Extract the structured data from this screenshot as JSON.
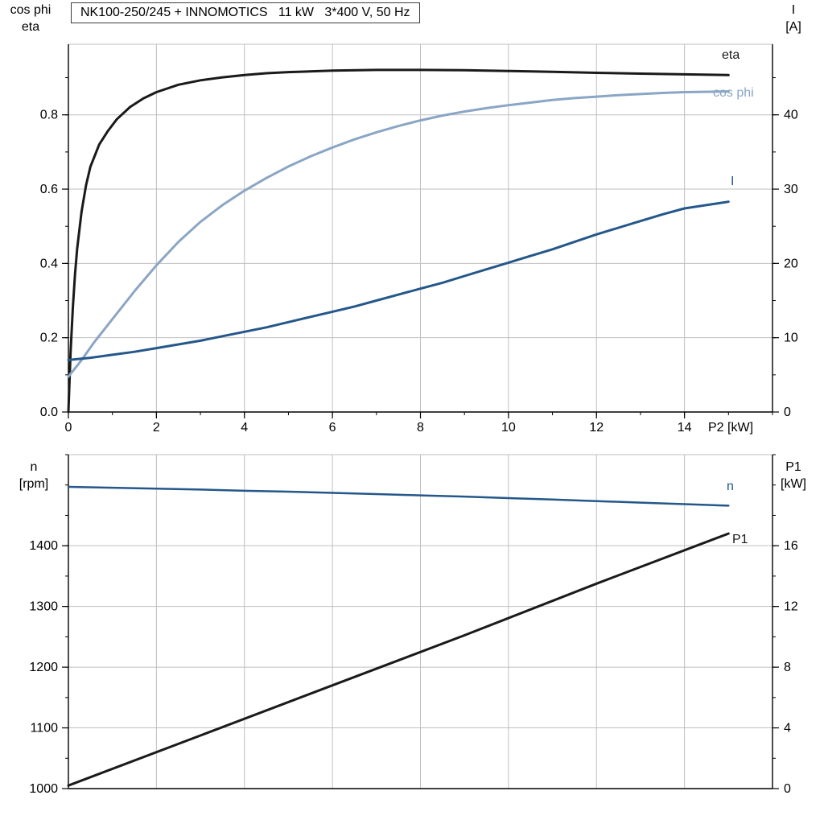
{
  "title_box": "NK100-250/245 + INNOMOTICS   11 kW   3*400 V, 50 Hz",
  "colors": {
    "black_curve": "#1a1a1a",
    "dark_blue_curve": "#24578a",
    "light_blue_curve": "#8aa6c4",
    "grid": "#bfbfbf",
    "axis": "#000000",
    "text": "#000000"
  },
  "top_chart": {
    "left_axis_title_line1": "cos phi",
    "left_axis_title_line2": "eta",
    "right_axis_title_line1": "I",
    "right_axis_title_line2": "[A]",
    "x_axis_title": "P2 [kW]",
    "curve_labels": {
      "eta": "eta",
      "cos_phi": "cos phi",
      "current": "I"
    }
  },
  "bottom_chart": {
    "left_axis_title_line1": "n",
    "left_axis_title_line2": "[rpm]",
    "right_axis_title_line1": "P1",
    "right_axis_title_line2": "[kW]",
    "curve_labels": {
      "speed": "n",
      "input_power": "P1"
    }
  },
  "chart_data": [
    {
      "type": "line",
      "title": "NK100-250/245 + INNOMOTICS   11 kW   3*400 V, 50 Hz",
      "xlabel": "P2 [kW]",
      "ylabel_left": "cos phi / eta",
      "ylabel_right": "I [A]",
      "xlim": [
        0,
        16
      ],
      "x_ticks": [
        0,
        2,
        4,
        6,
        8,
        10,
        12,
        14
      ],
      "x_tick_labels": [
        "0",
        "2",
        "4",
        "6",
        "8",
        "10",
        "12",
        "14"
      ],
      "ylim_left": [
        0,
        0.99
      ],
      "y_ticks_left": [
        0,
        0.2,
        0.4,
        0.6,
        0.8
      ],
      "y_tick_labels_left": [
        "0.0",
        "0.2",
        "0.4",
        "0.6",
        "0.8"
      ],
      "ylim_right": [
        0,
        49.5
      ],
      "y_ticks_right": [
        0,
        10,
        20,
        30,
        40
      ],
      "y_tick_labels_right": [
        "0",
        "10",
        "20",
        "30",
        "40"
      ],
      "grid": true,
      "series": [
        {
          "name": "eta",
          "axis": "left",
          "color": "#1a1a1a",
          "width": 3,
          "points": [
            [
              0,
              0
            ],
            [
              0.05,
              0.16
            ],
            [
              0.1,
              0.28
            ],
            [
              0.15,
              0.37
            ],
            [
              0.2,
              0.44
            ],
            [
              0.3,
              0.54
            ],
            [
              0.4,
              0.61
            ],
            [
              0.5,
              0.66
            ],
            [
              0.7,
              0.72
            ],
            [
              0.9,
              0.757
            ],
            [
              1.1,
              0.788
            ],
            [
              1.4,
              0.821
            ],
            [
              1.7,
              0.844
            ],
            [
              2,
              0.861
            ],
            [
              2.5,
              0.881
            ],
            [
              3,
              0.893
            ],
            [
              3.5,
              0.901
            ],
            [
              4,
              0.907
            ],
            [
              4.5,
              0.912
            ],
            [
              5,
              0.915
            ],
            [
              6,
              0.919
            ],
            [
              7,
              0.921
            ],
            [
              8,
              0.921
            ],
            [
              9,
              0.92
            ],
            [
              10,
              0.918
            ],
            [
              11,
              0.916
            ],
            [
              12,
              0.913
            ],
            [
              13,
              0.911
            ],
            [
              14,
              0.909
            ],
            [
              15,
              0.907
            ]
          ]
        },
        {
          "name": "cos phi",
          "axis": "left",
          "color": "#8aa6c4",
          "width": 3,
          "points": [
            [
              0,
              0.095
            ],
            [
              0.3,
              0.14
            ],
            [
              0.6,
              0.19
            ],
            [
              1,
              0.25
            ],
            [
              1.5,
              0.325
            ],
            [
              2,
              0.395
            ],
            [
              2.5,
              0.458
            ],
            [
              3,
              0.512
            ],
            [
              3.5,
              0.557
            ],
            [
              4,
              0.596
            ],
            [
              4.5,
              0.63
            ],
            [
              5,
              0.661
            ],
            [
              5.5,
              0.688
            ],
            [
              6,
              0.712
            ],
            [
              6.5,
              0.734
            ],
            [
              7,
              0.753
            ],
            [
              7.5,
              0.77
            ],
            [
              8,
              0.785
            ],
            [
              8.5,
              0.798
            ],
            [
              9,
              0.809
            ],
            [
              9.5,
              0.818
            ],
            [
              10,
              0.826
            ],
            [
              10.5,
              0.833
            ],
            [
              11,
              0.84
            ],
            [
              11.5,
              0.845
            ],
            [
              12,
              0.849
            ],
            [
              12.5,
              0.853
            ],
            [
              13,
              0.856
            ],
            [
              13.5,
              0.859
            ],
            [
              14,
              0.861
            ],
            [
              15,
              0.863
            ]
          ]
        },
        {
          "name": "I",
          "axis": "right",
          "color": "#24578a",
          "width": 3,
          "points": [
            [
              0,
              7
            ],
            [
              0.5,
              7.3
            ],
            [
              1,
              7.7
            ],
            [
              1.5,
              8.1
            ],
            [
              2,
              8.6
            ],
            [
              2.5,
              9.1
            ],
            [
              3,
              9.6
            ],
            [
              3.5,
              10.2
            ],
            [
              4,
              10.8
            ],
            [
              4.5,
              11.4
            ],
            [
              5,
              12.1
            ],
            [
              5.5,
              12.8
            ],
            [
              6,
              13.5
            ],
            [
              6.5,
              14.2
            ],
            [
              7,
              15
            ],
            [
              7.5,
              15.8
            ],
            [
              8,
              16.6
            ],
            [
              8.5,
              17.4
            ],
            [
              9,
              18.3
            ],
            [
              9.5,
              19.2
            ],
            [
              10,
              20.1
            ],
            [
              10.5,
              21
            ],
            [
              11,
              21.9
            ],
            [
              11.5,
              22.9
            ],
            [
              12,
              23.9
            ],
            [
              12.5,
              24.8
            ],
            [
              13,
              25.7
            ],
            [
              13.5,
              26.6
            ],
            [
              14,
              27.4
            ],
            [
              15,
              28.3
            ]
          ]
        }
      ]
    },
    {
      "type": "line",
      "title": "",
      "xlabel": "P2 [kW]",
      "ylabel_left": "n [rpm]",
      "ylabel_right": "P1 [kW]",
      "xlim": [
        0,
        16
      ],
      "x_ticks": [
        0,
        2,
        4,
        6,
        8,
        10,
        12,
        14
      ],
      "x_tick_labels": [
        "",
        "",
        "",
        "",
        "",
        "",
        "",
        ""
      ],
      "ylim_left": [
        1000,
        1550
      ],
      "y_ticks_left": [
        1000,
        1100,
        1200,
        1300,
        1400
      ],
      "y_tick_labels_left": [
        "1000",
        "1100",
        "1200",
        "1300",
        "1400"
      ],
      "ylim_right": [
        0,
        22
      ],
      "y_ticks_right": [
        0,
        4,
        8,
        12,
        16
      ],
      "y_tick_labels_right": [
        "0",
        "4",
        "8",
        "12",
        "16"
      ],
      "grid": true,
      "series": [
        {
          "name": "n",
          "axis": "left",
          "color": "#24578a",
          "width": 2.5,
          "points": [
            [
              0,
              1497
            ],
            [
              1,
              1495.5
            ],
            [
              2,
              1494
            ],
            [
              3,
              1492.5
            ],
            [
              4,
              1490.5
            ],
            [
              5,
              1489
            ],
            [
              6,
              1487
            ],
            [
              7,
              1485
            ],
            [
              8,
              1483
            ],
            [
              9,
              1481
            ],
            [
              10,
              1478.5
            ],
            [
              11,
              1476
            ],
            [
              12,
              1473.5
            ],
            [
              13,
              1471
            ],
            [
              14,
              1468.5
            ],
            [
              15,
              1466
            ]
          ]
        },
        {
          "name": "P1",
          "axis": "right",
          "color": "#1a1a1a",
          "width": 3,
          "points": [
            [
              0,
              0.2
            ],
            [
              3,
              3.5
            ],
            [
              6,
              6.8
            ],
            [
              9,
              10.1
            ],
            [
              12,
              13.5
            ],
            [
              15,
              16.8
            ]
          ]
        }
      ]
    }
  ]
}
